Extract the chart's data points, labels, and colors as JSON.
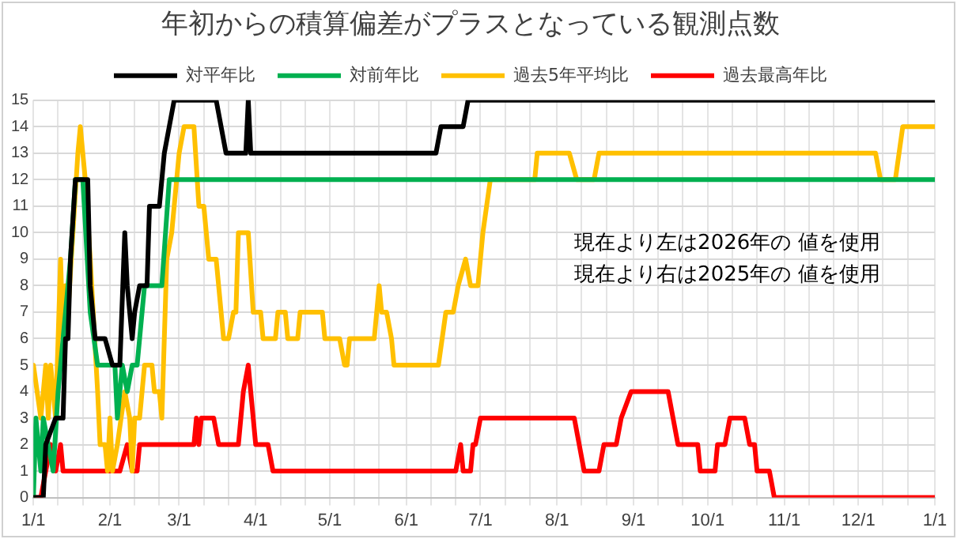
{
  "chart_data": {
    "type": "line",
    "title": "年初からの積算偏差がプラスとなっている観測点数",
    "xlim": [
      "2026-01-01",
      "2027-01-01"
    ],
    "xticks": [
      {
        "value": "2026-01-01",
        "label": "1/1"
      },
      {
        "value": "2026-01-11",
        "label": null
      },
      {
        "value": "2026-01-21",
        "label": null
      },
      {
        "value": "2026-02-01",
        "label": "2/1"
      },
      {
        "value": "2026-02-11",
        "label": null
      },
      {
        "value": "2026-02-21",
        "label": null
      },
      {
        "value": "2026-03-01",
        "label": "3/1"
      },
      {
        "value": "2026-03-11",
        "label": null
      },
      {
        "value": "2026-03-21",
        "label": null
      },
      {
        "value": "2026-04-01",
        "label": "4/1"
      },
      {
        "value": "2026-04-11",
        "label": null
      },
      {
        "value": "2026-04-21",
        "label": null
      },
      {
        "value": "2026-05-01",
        "label": "5/1"
      },
      {
        "value": "2026-05-11",
        "label": null
      },
      {
        "value": "2026-05-21",
        "label": null
      },
      {
        "value": "2026-06-01",
        "label": "6/1"
      },
      {
        "value": "2026-06-11",
        "label": null
      },
      {
        "value": "2026-06-21",
        "label": null
      },
      {
        "value": "2026-07-01",
        "label": "7/1"
      },
      {
        "value": "2026-07-11",
        "label": null
      },
      {
        "value": "2026-07-21",
        "label": null
      },
      {
        "value": "2026-08-01",
        "label": "8/1"
      },
      {
        "value": "2026-08-11",
        "label": null
      },
      {
        "value": "2026-08-21",
        "label": null
      },
      {
        "value": "2026-09-01",
        "label": "9/1"
      },
      {
        "value": "2026-09-11",
        "label": null
      },
      {
        "value": "2026-09-21",
        "label": null
      },
      {
        "value": "2026-10-01",
        "label": "10/1"
      },
      {
        "value": "2026-10-11",
        "label": null
      },
      {
        "value": "2026-10-21",
        "label": null
      },
      {
        "value": "2026-11-01",
        "label": "11/1"
      },
      {
        "value": "2026-11-11",
        "label": null
      },
      {
        "value": "2026-11-21",
        "label": null
      },
      {
        "value": "2026-12-01",
        "label": "12/1"
      },
      {
        "value": "2026-12-11",
        "label": null
      },
      {
        "value": "2026-12-21",
        "label": null
      },
      {
        "value": "2027-01-01",
        "label": "1/1"
      }
    ],
    "ylim": [
      0,
      15
    ],
    "yticks": [
      0,
      1,
      2,
      3,
      4,
      5,
      6,
      7,
      8,
      9,
      10,
      11,
      12,
      13,
      14,
      15
    ],
    "grid": true,
    "legend": "top",
    "marker": "none",
    "line_style": "solid",
    "annotations": [
      "現在より左は2026年の 値を使用",
      "現在より右は2025年の 値を使用"
    ],
    "series": [
      {
        "name": "対平年比",
        "color": "#000000",
        "x": [
          "2026-01-01",
          "2026-01-05",
          "2026-01-06",
          "2026-01-10",
          "2026-01-13",
          "2026-01-14",
          "2026-01-15",
          "2026-01-16",
          "2026-01-18",
          "2026-01-23",
          "2026-01-24",
          "2026-01-26",
          "2026-01-30",
          "2026-02-02",
          "2026-02-05",
          "2026-02-07",
          "2026-02-08",
          "2026-02-10",
          "2026-02-11",
          "2026-02-13",
          "2026-02-16",
          "2026-02-17",
          "2026-02-21",
          "2026-02-23",
          "2026-02-25",
          "2026-02-27",
          "2026-03-16",
          "2026-03-20",
          "2026-03-28",
          "2026-03-29",
          "2026-03-30",
          "2026-06-13",
          "2026-06-15",
          "2026-06-24",
          "2026-06-26",
          "2027-01-01"
        ],
        "values": [
          0,
          0,
          2,
          3,
          3,
          6,
          6,
          9,
          12,
          12,
          8,
          6,
          6,
          5,
          5,
          10,
          8,
          6,
          7,
          8,
          8,
          11,
          11,
          13,
          14,
          15,
          15,
          13,
          13,
          15,
          13,
          13,
          14,
          14,
          15,
          15
        ]
      },
      {
        "name": "対前年比",
        "color": "#00b050",
        "x": [
          "2026-01-01",
          "2026-01-02",
          "2026-01-04",
          "2026-01-05",
          "2026-01-07",
          "2026-01-09",
          "2026-01-11",
          "2026-01-12",
          "2026-01-14",
          "2026-01-16",
          "2026-01-18",
          "2026-01-21",
          "2026-01-24",
          "2026-01-27",
          "2026-02-03",
          "2026-02-04",
          "2026-02-06",
          "2026-02-08",
          "2026-02-10",
          "2026-02-12",
          "2026-02-13",
          "2026-02-15",
          "2026-02-22",
          "2026-02-25",
          "2027-01-01"
        ],
        "values": [
          0,
          3,
          1,
          3,
          2,
          1,
          4,
          5,
          7,
          9,
          12,
          12,
          7,
          5,
          5,
          3,
          5,
          4,
          5,
          5,
          6,
          8,
          8,
          12,
          12
        ]
      },
      {
        "name": "過去5年平均比",
        "color": "#ffc000",
        "x": [
          "2026-01-01",
          "2026-01-04",
          "2026-01-06",
          "2026-01-07",
          "2026-01-08",
          "2026-01-09",
          "2026-01-10",
          "2026-01-12",
          "2026-01-13",
          "2026-01-14",
          "2026-01-15",
          "2026-01-17",
          "2026-01-19",
          "2026-01-20",
          "2026-01-22",
          "2026-01-24",
          "2026-01-27",
          "2026-01-28",
          "2026-01-30",
          "2026-01-31",
          "2026-02-01",
          "2026-02-02",
          "2026-02-04",
          "2026-02-07",
          "2026-02-09",
          "2026-02-10",
          "2026-02-11",
          "2026-02-13",
          "2026-02-15",
          "2026-02-18",
          "2026-02-19",
          "2026-02-21",
          "2026-02-22",
          "2026-02-24",
          "2026-02-26",
          "2026-03-01",
          "2026-03-03",
          "2026-03-07",
          "2026-03-09",
          "2026-03-11",
          "2026-03-13",
          "2026-03-16",
          "2026-03-17",
          "2026-03-19",
          "2026-03-21",
          "2026-03-23",
          "2026-03-24",
          "2026-03-25",
          "2026-03-29",
          "2026-03-31",
          "2026-04-03",
          "2026-04-04",
          "2026-04-09",
          "2026-04-10",
          "2026-04-13",
          "2026-04-14",
          "2026-04-18",
          "2026-04-19",
          "2026-04-28",
          "2026-04-29",
          "2026-05-05",
          "2026-05-07",
          "2026-05-08",
          "2026-05-09",
          "2026-05-19",
          "2026-05-21",
          "2026-05-22",
          "2026-05-24",
          "2026-05-26",
          "2026-05-27",
          "2026-06-14",
          "2026-06-17",
          "2026-06-20",
          "2026-06-22",
          "2026-06-25",
          "2026-06-27",
          "2026-06-30",
          "2026-07-02",
          "2026-07-05",
          "2026-07-23",
          "2026-07-24",
          "2026-08-06",
          "2026-08-09",
          "2026-08-16",
          "2026-08-18",
          "2026-12-08",
          "2026-12-10",
          "2026-12-16",
          "2026-12-19",
          "2027-01-01"
        ],
        "values": [
          5,
          3,
          5,
          3,
          5,
          4,
          3,
          9,
          6,
          8,
          7,
          10,
          13,
          14,
          12,
          9,
          4,
          2,
          2,
          1,
          3,
          1,
          2,
          4,
          3,
          1,
          3,
          3,
          5,
          5,
          4,
          4,
          3,
          9,
          10,
          13,
          14,
          14,
          11,
          11,
          9,
          9,
          8,
          6,
          6,
          7,
          7,
          10,
          10,
          7,
          7,
          6,
          6,
          7,
          7,
          6,
          6,
          7,
          7,
          6,
          6,
          5,
          5,
          6,
          6,
          8,
          7,
          7,
          6,
          5,
          5,
          7,
          7,
          8,
          9,
          8,
          8,
          10,
          12,
          12,
          13,
          13,
          12,
          12,
          13,
          13,
          12,
          12,
          14,
          14
        ]
      },
      {
        "name": "過去最高年比",
        "color": "#ff0000",
        "x": [
          "2026-01-01",
          "2026-01-04",
          "2026-01-06",
          "2026-01-08",
          "2026-01-10",
          "2026-01-12",
          "2026-01-13",
          "2026-02-05",
          "2026-02-08",
          "2026-02-10",
          "2026-02-12",
          "2026-02-13",
          "2026-03-07",
          "2026-03-08",
          "2026-03-09",
          "2026-03-10",
          "2026-03-15",
          "2026-03-17",
          "2026-03-25",
          "2026-03-27",
          "2026-03-29",
          "2026-03-30",
          "2026-04-01",
          "2026-04-06",
          "2026-04-08",
          "2026-06-21",
          "2026-06-23",
          "2026-06-24",
          "2026-06-27",
          "2026-06-28",
          "2026-06-29",
          "2026-07-01",
          "2026-08-08",
          "2026-08-10",
          "2026-08-12",
          "2026-08-18",
          "2026-08-20",
          "2026-08-25",
          "2026-08-27",
          "2026-08-31",
          "2026-09-15",
          "2026-09-17",
          "2026-09-19",
          "2026-09-27",
          "2026-09-28",
          "2026-10-04",
          "2026-10-05",
          "2026-10-08",
          "2026-10-10",
          "2026-10-16",
          "2026-10-18",
          "2026-10-20",
          "2026-10-21",
          "2026-10-26",
          "2026-10-28",
          "2027-01-01"
        ],
        "values": [
          0,
          0,
          1,
          2,
          1,
          2,
          1,
          1,
          2,
          1,
          1,
          2,
          2,
          3,
          2,
          3,
          3,
          2,
          2,
          4,
          5,
          4,
          2,
          2,
          1,
          1,
          2,
          1,
          1,
          2,
          2,
          3,
          3,
          2,
          1,
          1,
          2,
          2,
          3,
          4,
          4,
          3,
          2,
          2,
          1,
          1,
          2,
          2,
          3,
          3,
          2,
          2,
          1,
          1,
          0,
          0
        ]
      }
    ]
  }
}
